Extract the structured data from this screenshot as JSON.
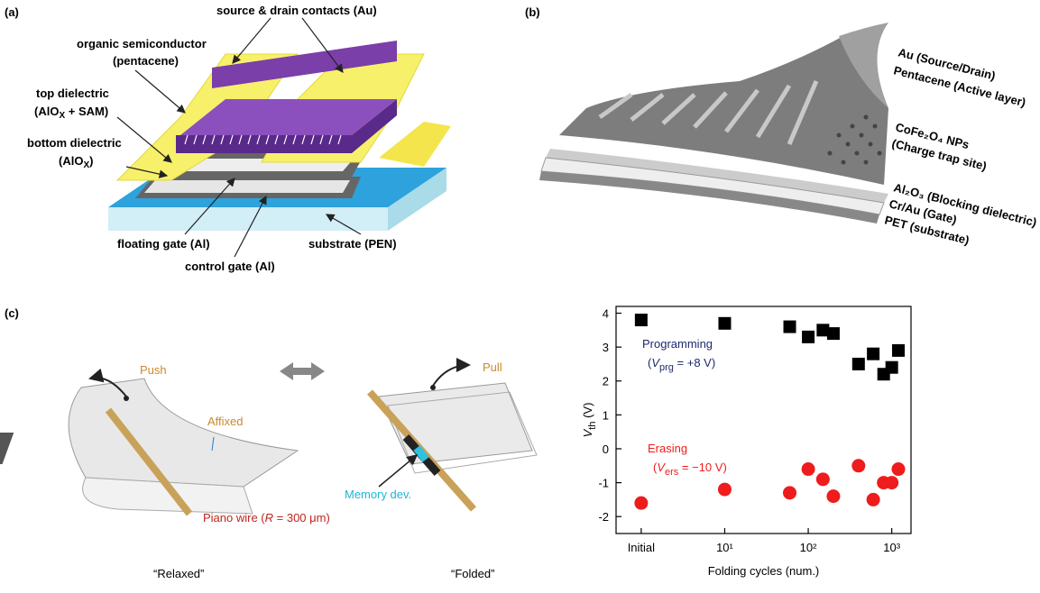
{
  "panels": {
    "a": {
      "label": "(a)",
      "contacts": "source & drain contacts (Au)",
      "semiconductor": [
        "organic semiconductor",
        "(pentacene)"
      ],
      "top_dielectric": [
        "top dielectric",
        "(AlO",
        "X",
        " + SAM)"
      ],
      "bottom_dielectric": [
        "bottom dielectric",
        "(AlO",
        "X",
        ")"
      ],
      "floating_gate": "floating gate (Al)",
      "control_gate": "control gate (Al)",
      "substrate": "substrate (PEN)"
    },
    "b": {
      "label": "(b)",
      "layers": [
        "Au (Source/Drain)",
        "Pentacene (Active layer)",
        "CoFe₂O₄ NPs",
        "(Charge trap site)",
        "Al₂O₃ (Blocking dielectric)",
        "Cr/Au (Gate)",
        "PET (substrate)"
      ]
    },
    "c": {
      "label": "(c)",
      "push": "Push",
      "pull": "Pull",
      "affixed": "Affixed",
      "memory": "Memory dev.",
      "wire": [
        "Piano wire (",
        "R",
        " = 300 μm)"
      ],
      "relaxed": "“Relaxed”",
      "folded": "“Folded”"
    }
  },
  "chart_data": {
    "type": "scatter",
    "xlabel": "Folding cycles (num.)",
    "ylabel": [
      "V",
      "th",
      " (V)"
    ],
    "x": [
      1,
      10,
      60,
      100,
      150,
      200,
      400,
      600,
      800,
      1000,
      1200
    ],
    "xlog": true,
    "xlim": [
      0.5,
      1700
    ],
    "xticks": [
      {
        "value": 1,
        "label": "Initial"
      },
      {
        "value": 10,
        "label": "10¹"
      },
      {
        "value": 100,
        "label": "10²"
      },
      {
        "value": 1000,
        "label": "10³"
      }
    ],
    "ylim": [
      -2.5,
      4.2
    ],
    "yticks": [
      -2,
      -1,
      0,
      1,
      2,
      3,
      4
    ],
    "series": [
      {
        "name": "Programming",
        "note": [
          "(",
          "V",
          "prg",
          " = +8 V)"
        ],
        "color": "#000000",
        "marker": "square",
        "values": [
          3.8,
          3.7,
          3.6,
          3.3,
          3.5,
          3.4,
          2.5,
          2.8,
          2.2,
          2.4,
          2.9
        ]
      },
      {
        "name": "Erasing",
        "note": [
          "(",
          "V",
          "ers",
          " = −10 V)"
        ],
        "color": "#ee1c1c",
        "marker": "circle",
        "values": [
          -1.6,
          -1.2,
          -1.3,
          -0.6,
          -0.9,
          -1.4,
          -0.5,
          -1.5,
          -1.0,
          -1.0,
          -0.6
        ]
      }
    ]
  }
}
